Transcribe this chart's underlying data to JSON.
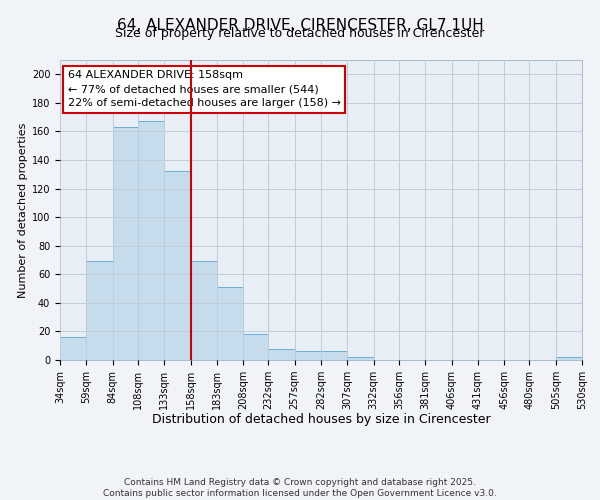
{
  "title": "64, ALEXANDER DRIVE, CIRENCESTER, GL7 1UH",
  "subtitle": "Size of property relative to detached houses in Cirencester",
  "xlabel": "Distribution of detached houses by size in Cirencester",
  "ylabel": "Number of detached properties",
  "bin_edges": [
    34,
    59,
    84,
    108,
    133,
    158,
    183,
    208,
    232,
    257,
    282,
    307,
    332,
    356,
    381,
    406,
    431,
    456,
    480,
    505,
    530
  ],
  "bar_heights": [
    16,
    69,
    163,
    167,
    132,
    69,
    51,
    18,
    8,
    6,
    6,
    2,
    0,
    0,
    0,
    0,
    0,
    0,
    0,
    2
  ],
  "bar_color": "#c6dcec",
  "bar_edge_color": "#6baed6",
  "vline_x": 158,
  "vline_color": "#cc0000",
  "annotation_line1": "64 ALEXANDER DRIVE: 158sqm",
  "annotation_line2": "← 77% of detached houses are smaller (544)",
  "annotation_line3": "22% of semi-detached houses are larger (158) →",
  "annotation_box_edge_color": "#cc0000",
  "annotation_box_face_color": "#ffffff",
  "ylim": [
    0,
    210
  ],
  "yticks": [
    0,
    20,
    40,
    60,
    80,
    100,
    120,
    140,
    160,
    180,
    200
  ],
  "background_color": "#f0f4f8",
  "plot_bg_color": "#e8eef5",
  "grid_color": "#c0ccd8",
  "tick_labels": [
    "34sqm",
    "59sqm",
    "84sqm",
    "108sqm",
    "133sqm",
    "158sqm",
    "183sqm",
    "208sqm",
    "232sqm",
    "257sqm",
    "282sqm",
    "307sqm",
    "332sqm",
    "356sqm",
    "381sqm",
    "406sqm",
    "431sqm",
    "456sqm",
    "480sqm",
    "505sqm",
    "530sqm"
  ],
  "footer_text": "Contains HM Land Registry data © Crown copyright and database right 2025.\nContains public sector information licensed under the Open Government Licence v3.0.",
  "title_fontsize": 11,
  "subtitle_fontsize": 9,
  "xlabel_fontsize": 9,
  "ylabel_fontsize": 8,
  "tick_fontsize": 7,
  "annotation_fontsize": 8,
  "footer_fontsize": 6.5
}
